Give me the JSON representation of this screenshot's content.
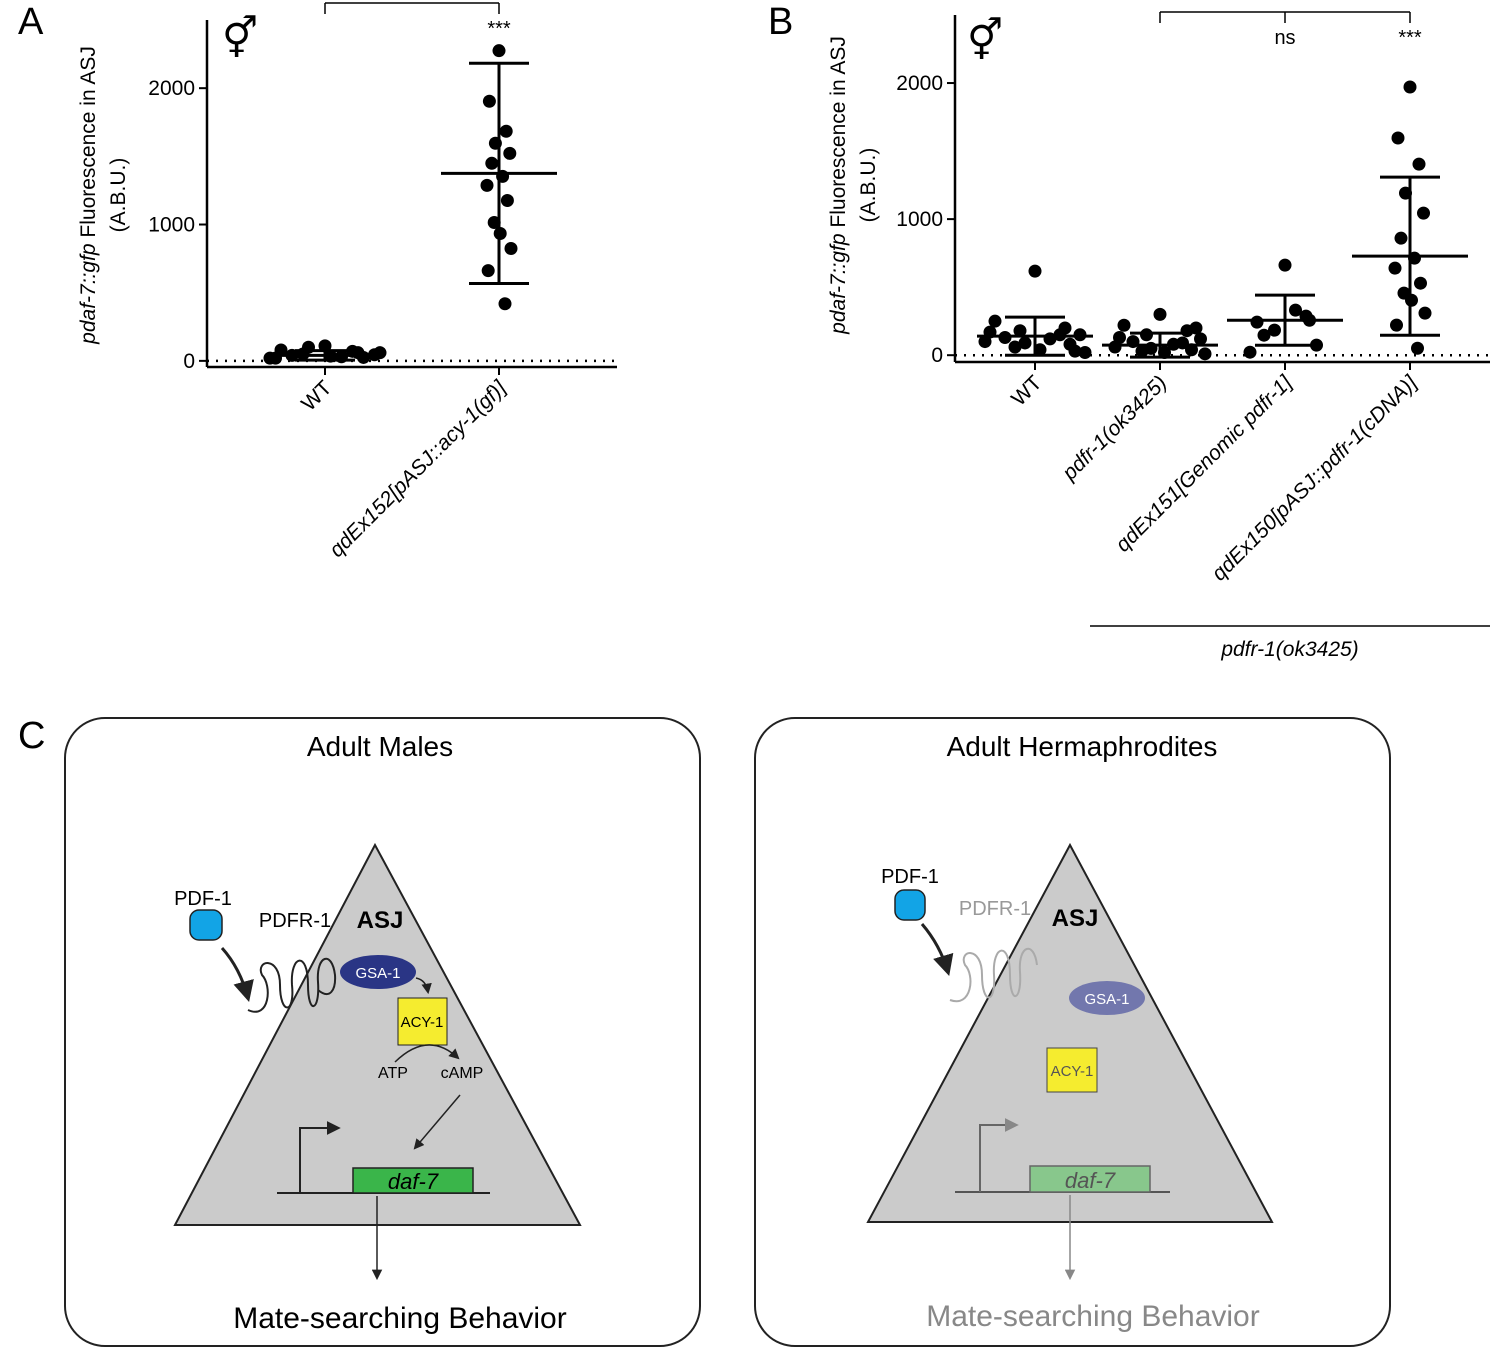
{
  "chart_data": [
    {
      "type": "strip",
      "panel_label": "A",
      "symbol": "⚥",
      "y_label_gene": "pdaf-7::gfp",
      "y_label": "Fluorescence in ASJ",
      "y_label_unit": "(A.B.U.)",
      "categories": [
        "WT",
        "qdEx152[pASJ::acy-1(gf)]"
      ],
      "points": [
        [
          110,
          80,
          60,
          100,
          45,
          40,
          30,
          20,
          25,
          50,
          35,
          60,
          20,
          70
        ],
        [
          2275,
          1904,
          1684,
          1596,
          1522,
          1449,
          1353,
          1287,
          1176,
          1015,
          934,
          824,
          662,
          419
        ]
      ],
      "mean": [
        40,
        1375
      ],
      "sd": [
        35,
        808
      ],
      "significance": [
        null,
        "***"
      ],
      "ylim": [
        -45,
        2500
      ],
      "yticks": [
        0,
        1000,
        2000
      ],
      "hline": 0,
      "color": "#000000"
    },
    {
      "type": "strip",
      "panel_label": "B",
      "symbol": "⚥",
      "y_label_gene": "pdaf-7::gfp",
      "y_label": "Fluorescence in ASJ",
      "y_label_unit": "(A.B.U.)",
      "categories": [
        "WT",
        "pdfr-1(ok3425)",
        "qdEx151[Genomic pdfr-1]",
        "qdEx150[pASJ::pdfr-1(cDNA)]"
      ],
      "points": [
        [
          618,
          250,
          200,
          180,
          150,
          130,
          120,
          100,
          80,
          60,
          40,
          20,
          170,
          150,
          90,
          30
        ],
        [
          300,
          220,
          180,
          150,
          120,
          100,
          80,
          60,
          40,
          30,
          20,
          10,
          130,
          90,
          50,
          200
        ],
        [
          662,
          243,
          287,
          184,
          74,
          147,
          331,
          22,
          257
        ],
        [
          1971,
          1596,
          1404,
          1191,
          1044,
          860,
          713,
          640,
          529,
          456,
          404,
          309,
          221,
          51
        ]
      ],
      "mean": [
        140,
        74,
        257,
        728
      ],
      "sd": [
        140,
        88,
        184,
        581
      ],
      "significance": [
        null,
        null,
        "ns",
        "***"
      ],
      "group_label": "pdfr-1(ok3425)",
      "ylim": [
        -50,
        2500
      ],
      "yticks": [
        0,
        1000,
        2000
      ],
      "hline": 0,
      "color": "#000000"
    }
  ],
  "diagram": {
    "panel_label": "C",
    "males": {
      "title": "Adult Males",
      "ligand": "PDF-1",
      "receptor": "PDFR-1",
      "cell": "ASJ",
      "g_protein": "GSA-1",
      "cyclase": "ACY-1",
      "substrate": "ATP",
      "product": "cAMP",
      "gene": "daf-7",
      "behavior": "Mate-searching Behavior"
    },
    "hermaphrodites": {
      "title": "Adult Hermaphrodites",
      "ligand": "PDF-1",
      "receptor": "PDFR-1",
      "cell": "ASJ",
      "g_protein": "GSA-1",
      "cyclase": "ACY-1",
      "gene": "daf-7",
      "behavior": "Mate-searching Behavior"
    }
  }
}
